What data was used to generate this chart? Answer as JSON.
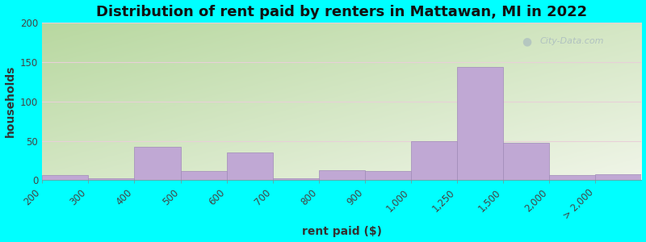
{
  "title": "Distribution of rent paid by renters in Mattawan, MI in 2022",
  "xlabel": "rent paid ($)",
  "ylabel": "households",
  "bar_color": "#c0a8d4",
  "bar_edge_color": "#a08ab8",
  "tick_labels": [
    "200",
    "300",
    "400",
    "500",
    "600",
    "700",
    "800",
    "900",
    "1,000",
    "1,250",
    "1,500",
    "2,000",
    "> 2,000"
  ],
  "values": [
    7,
    2,
    42,
    12,
    35,
    2,
    13,
    12,
    50,
    144,
    47,
    7,
    8
  ],
  "ylim": [
    0,
    200
  ],
  "yticks": [
    0,
    50,
    100,
    150,
    200
  ],
  "bg_color_outer": "#00ffff",
  "grad_top_left": "#b8d8a0",
  "grad_bottom_right": "#f0f5e8",
  "title_fontsize": 13,
  "axis_label_fontsize": 10,
  "tick_fontsize": 8.5,
  "watermark_text": "City-Data.com"
}
